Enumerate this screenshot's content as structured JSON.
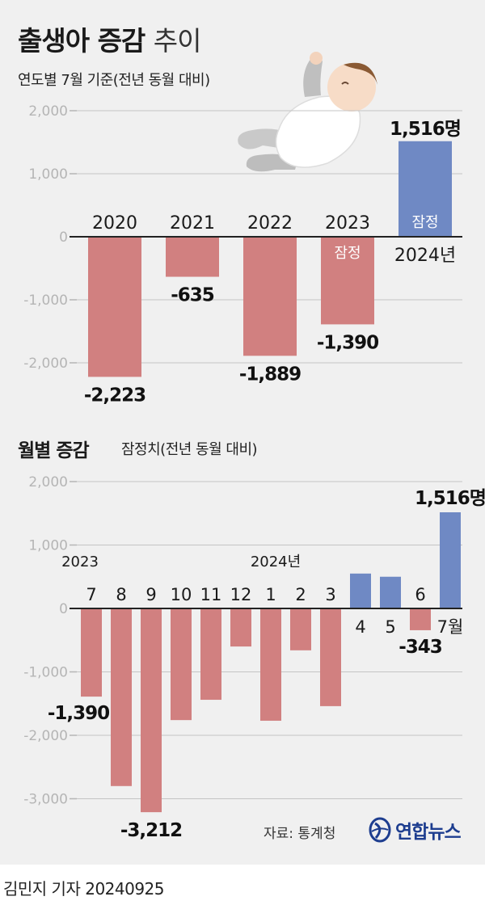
{
  "header": {
    "title_bold": "출생아 증감",
    "title_light": "추이",
    "subtitle": "연도별 7월 기준(전년 동월 대비)"
  },
  "section2": {
    "title": "월별 증감",
    "subtitle": "잠정치(전년 동월 대비)"
  },
  "footer": {
    "source": "자료: 통계청",
    "logo_text": "연합뉴스",
    "credit": "김민지 기자  20240925"
  },
  "colors": {
    "background": "#f0f0f0",
    "negative": "#d18080",
    "positive": "#6f89c4",
    "grid": "#c4c4c4",
    "axis": "#222222",
    "tick": "#b5b5b5",
    "logo": "#1d3d8f"
  },
  "chart_data": [
    {
      "type": "bar",
      "categories": [
        "2020",
        "2021",
        "2022",
        "2023",
        "2024년"
      ],
      "values": [
        -2223,
        -635,
        -1889,
        -1390,
        1516
      ],
      "value_labels": [
        "-2,223",
        "-635",
        "-1,889",
        "-1,390",
        "1,516명"
      ],
      "bar_notes": [
        "",
        "",
        "",
        "잠정",
        "잠정"
      ],
      "ylim": [
        -2300,
        2000
      ],
      "yticks": [
        2000,
        1000,
        0,
        -1000,
        -2000
      ],
      "ytick_labels": [
        "2,000",
        "1,000",
        "0",
        "-1,000",
        "-2,000"
      ],
      "grid": true
    },
    {
      "type": "bar",
      "categories": [
        "7",
        "8",
        "9",
        "10",
        "11",
        "12",
        "1",
        "2",
        "3",
        "4",
        "5",
        "6",
        "7월"
      ],
      "year_labels": [
        "2023",
        "",
        "",
        "",
        "",
        "",
        "2024년",
        "",
        "",
        "",
        "",
        "",
        ""
      ],
      "values": [
        -1390,
        -2800,
        -3212,
        -1760,
        -1440,
        -600,
        -1770,
        -660,
        -1540,
        550,
        500,
        -343,
        1516
      ],
      "value_labels": [
        "-1,390",
        "",
        "-3,212",
        "",
        "",
        "",
        "",
        "",
        "",
        "",
        "",
        "-343",
        "1,516명"
      ],
      "ylim": [
        -3300,
        2000
      ],
      "yticks": [
        2000,
        1000,
        0,
        -1000,
        -2000,
        -3000
      ],
      "ytick_labels": [
        "2,000",
        "1,000",
        "0",
        "-1,000",
        "-2,000",
        "-3,000"
      ],
      "grid": true
    }
  ]
}
